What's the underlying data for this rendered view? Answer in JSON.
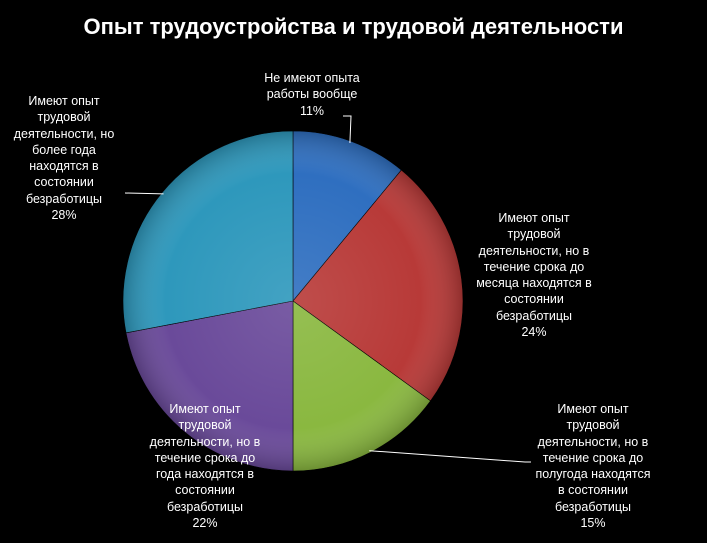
{
  "chart_data": {
    "type": "pie",
    "title": "Опыт трудоустройства и трудовой деятельности",
    "slices": [
      {
        "label_lines": [
          "Не имеют опыта",
          "работы вообще"
        ],
        "value_label": "11%",
        "value": 11,
        "color": "#2f6fc0"
      },
      {
        "label_lines": [
          "Имеют опыт",
          "трудовой",
          "деятельности, но в",
          "течение срока до",
          "месяца находятся в",
          "состоянии",
          "безработицы"
        ],
        "value_label": "24%",
        "value": 24,
        "color": "#b83a38"
      },
      {
        "label_lines": [
          "Имеют опыт",
          "трудовой",
          "деятельности, но в",
          "течение срока до",
          "полугода находятся",
          "в состоянии",
          "безработицы"
        ],
        "value_label": "15%",
        "value": 15,
        "color": "#8ab840"
      },
      {
        "label_lines": [
          "Имеют опыт",
          "трудовой",
          "деятельности, но в",
          "течение срока до",
          "года находятся в",
          "состоянии",
          "безработицы"
        ],
        "value_label": "22%",
        "value": 22,
        "color": "#6a4a9a"
      },
      {
        "label_lines": [
          "Имеют опыт",
          "трудовой",
          "деятельности, но",
          "более года",
          "находятся в",
          "состоянии",
          "безработицы"
        ],
        "value_label": "28%",
        "value": 28,
        "color": "#2e98bc"
      }
    ]
  }
}
